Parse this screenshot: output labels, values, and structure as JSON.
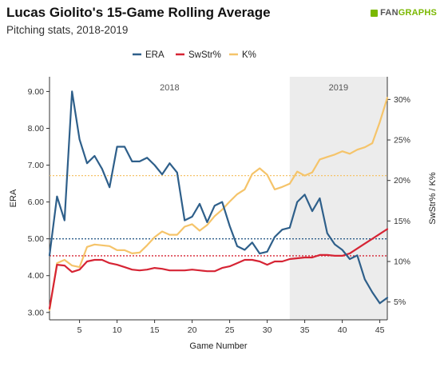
{
  "header": {
    "title": "Lucas Giolito's 15-Game Rolling Average",
    "subtitle": "Pitching stats, 2018-2019",
    "logo_fan": "FAN",
    "logo_graphs": "GRAPHS"
  },
  "colors": {
    "era": "#2e5f8a",
    "swstr": "#d62434",
    "k": "#f5c46a",
    "shade": "#ececec"
  },
  "chart_data": {
    "type": "line",
    "xlabel": "Game Number",
    "ylabel_left": "ERA",
    "ylabel_right": "SwStr% / K%",
    "xlim": [
      1,
      46
    ],
    "ylim_left": [
      2.8,
      9.4
    ],
    "ylim_right": [
      2.8,
      32.8
    ],
    "x_ticks": [
      5,
      10,
      15,
      20,
      25,
      30,
      35,
      40,
      45
    ],
    "y_ticks_left": [
      "3.00",
      "4.00",
      "5.00",
      "6.00",
      "7.00",
      "8.00",
      "9.00"
    ],
    "y_ticks_right": [
      "5%",
      "10%",
      "15%",
      "20%",
      "25%",
      "30%"
    ],
    "legend": [
      "ERA",
      "SwStr%",
      "K%"
    ],
    "legend_position": "top-center",
    "regions": [
      {
        "label": "2018",
        "x_start": 1,
        "x_end": 33,
        "shaded": false
      },
      {
        "label": "2019",
        "x_start": 33,
        "x_end": 46,
        "shaded": true
      }
    ],
    "reference_lines": [
      {
        "series": "ERA",
        "axis": "left",
        "value": 5.0
      },
      {
        "series": "SwStr%",
        "axis": "right",
        "value": 10.7
      },
      {
        "series": "K%",
        "axis": "right",
        "value": 20.6
      }
    ],
    "series": [
      {
        "name": "ERA",
        "axis": "left",
        "values": [
          4.55,
          6.15,
          5.5,
          9.0,
          7.7,
          7.05,
          7.25,
          6.9,
          6.4,
          7.5,
          7.5,
          7.1,
          7.1,
          7.2,
          7.0,
          6.75,
          7.05,
          6.8,
          5.5,
          5.6,
          5.95,
          5.45,
          5.9,
          6.0,
          5.35,
          4.8,
          4.7,
          4.9,
          4.6,
          4.65,
          5.05,
          5.25,
          5.3,
          6.0,
          6.2,
          5.75,
          6.1,
          5.15,
          4.85,
          4.7,
          4.45,
          4.55,
          3.9,
          3.55,
          3.25,
          3.4
        ]
      },
      {
        "name": "SwStr%",
        "axis": "right",
        "values": [
          4.2,
          9.6,
          9.5,
          8.7,
          9.0,
          10.0,
          10.2,
          10.2,
          9.8,
          9.6,
          9.3,
          9.0,
          8.9,
          9.0,
          9.2,
          9.1,
          8.9,
          8.9,
          8.9,
          9.0,
          8.9,
          8.8,
          8.8,
          9.2,
          9.4,
          9.8,
          10.2,
          10.2,
          10.0,
          9.6,
          10.0,
          10.0,
          10.3,
          10.4,
          10.5,
          10.5,
          10.8,
          10.8,
          10.7,
          10.7,
          11.0,
          11.6,
          12.2,
          12.8,
          13.4,
          14.0
        ]
      },
      {
        "name": "K%",
        "axis": "right",
        "values": [
          4.0,
          9.8,
          10.2,
          9.5,
          9.3,
          11.8,
          12.1,
          12.0,
          11.9,
          11.4,
          11.4,
          11.0,
          11.1,
          12.0,
          13.0,
          13.7,
          13.3,
          13.3,
          14.3,
          14.6,
          13.8,
          14.5,
          15.6,
          16.4,
          17.4,
          18.3,
          18.9,
          20.8,
          21.5,
          20.7,
          18.9,
          19.2,
          19.6,
          21.1,
          20.6,
          21.0,
          22.6,
          22.9,
          23.2,
          23.6,
          23.3,
          23.8,
          24.1,
          24.6,
          27.2,
          30.2
        ]
      }
    ]
  }
}
